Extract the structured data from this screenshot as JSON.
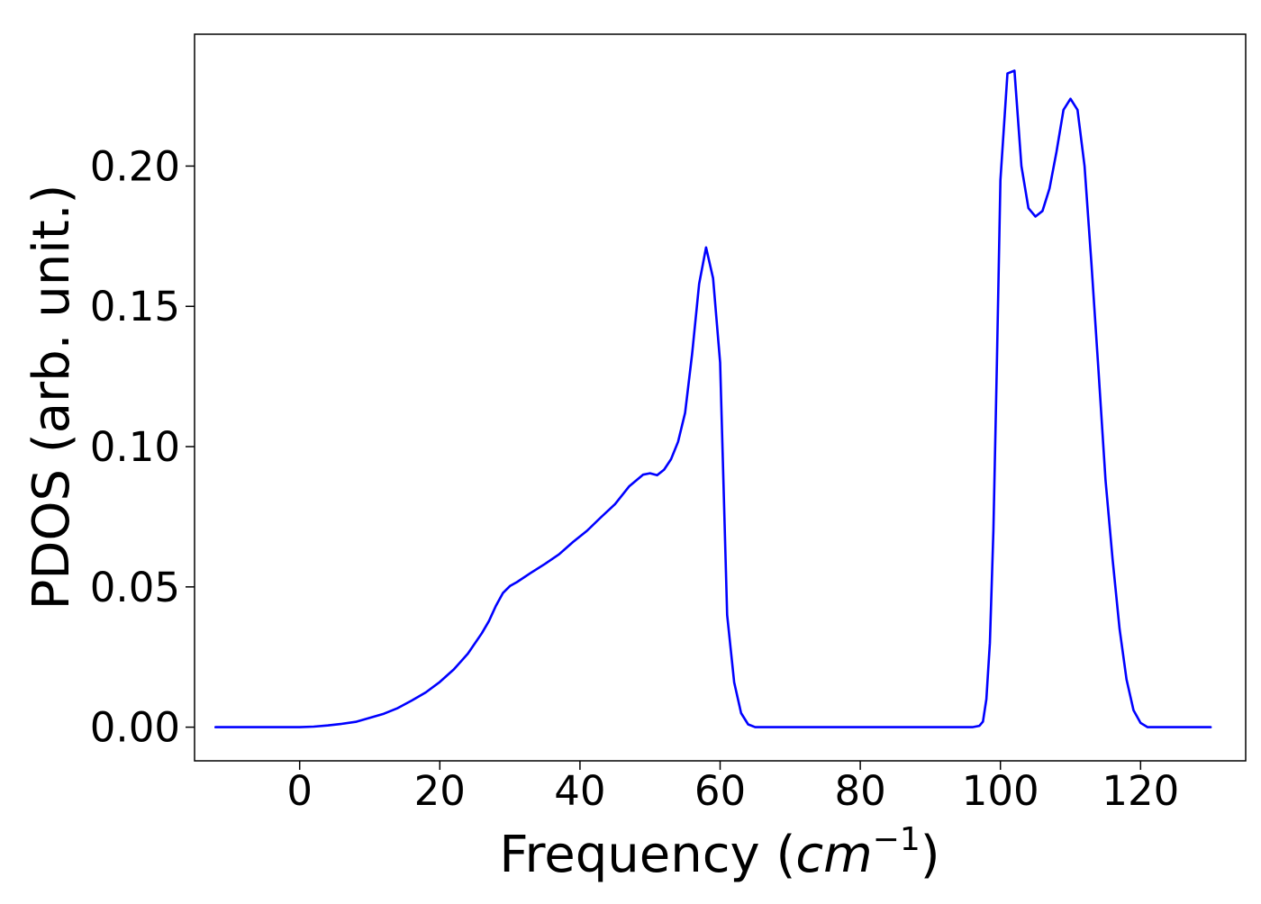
{
  "chart_data": {
    "type": "line",
    "title": "",
    "xlabel": "Frequency (cm⁻¹)",
    "xlabel_parts": {
      "prefix": "Frequency (",
      "unit": "cm",
      "exponent": "−1",
      "suffix": ")"
    },
    "ylabel": "PDOS (arb. unit.)",
    "xlim": [
      -15,
      135
    ],
    "ylim": [
      -0.012,
      0.247
    ],
    "xticks": [
      0,
      20,
      40,
      60,
      80,
      100,
      120
    ],
    "xtick_labels": [
      "0",
      "20",
      "40",
      "60",
      "80",
      "100",
      "120"
    ],
    "yticks": [
      0.0,
      0.05,
      0.1,
      0.15,
      0.2
    ],
    "ytick_labels": [
      "0.00",
      "0.05",
      "0.10",
      "0.15",
      "0.20"
    ],
    "grid": false,
    "legend": "none",
    "series": [
      {
        "color": "#0000ff",
        "x": [
          -12,
          -5,
          0,
          2,
          4,
          6,
          8,
          10,
          12,
          14,
          16,
          18,
          20,
          22,
          24,
          26,
          27,
          28,
          29,
          30,
          31,
          33,
          35,
          37,
          39,
          41,
          43,
          45,
          47,
          49,
          50,
          51,
          52,
          53,
          54,
          55,
          56,
          57,
          58,
          59,
          60,
          61,
          62,
          63,
          64,
          65,
          70,
          80,
          90,
          96,
          97,
          97.5,
          98,
          98.5,
          99,
          99.5,
          100,
          101,
          102,
          103,
          104,
          105,
          106,
          107,
          108,
          109,
          110,
          111,
          112,
          113,
          114,
          115,
          116,
          117,
          118,
          119,
          120,
          121,
          122,
          125,
          130
        ],
        "y": [
          0.0,
          0.0,
          0.0,
          0.0002,
          0.0006,
          0.0012,
          0.0019,
          0.0033,
          0.0048,
          0.0068,
          0.0095,
          0.0124,
          0.0161,
          0.0206,
          0.0262,
          0.0335,
          0.0378,
          0.0432,
          0.0478,
          0.0503,
          0.0517,
          0.055,
          0.0582,
          0.0616,
          0.066,
          0.07,
          0.0748,
          0.0795,
          0.0858,
          0.09,
          0.0905,
          0.0898,
          0.0918,
          0.0955,
          0.1017,
          0.112,
          0.133,
          0.158,
          0.171,
          0.16,
          0.13,
          0.04,
          0.016,
          0.005,
          0.001,
          0.0,
          0.0,
          0.0,
          0.0,
          0.0,
          0.0005,
          0.002,
          0.01,
          0.03,
          0.07,
          0.13,
          0.195,
          0.233,
          0.234,
          0.2,
          0.185,
          0.182,
          0.184,
          0.192,
          0.205,
          0.22,
          0.224,
          0.22,
          0.2,
          0.165,
          0.127,
          0.088,
          0.06,
          0.035,
          0.017,
          0.006,
          0.0015,
          0.0,
          0.0,
          0.0,
          0.0
        ]
      }
    ]
  }
}
